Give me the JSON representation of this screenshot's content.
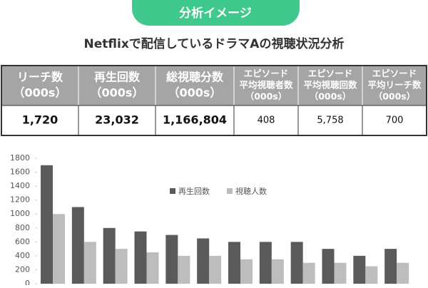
{
  "banner": {
    "text": "分析イメージ"
  },
  "title": "Netflixで配信しているドラマAの視聴状況分析",
  "table": {
    "header": [
      [
        "リーチ数",
        "（000s）"
      ],
      [
        "再生回数",
        "（000s）"
      ],
      [
        "総視聴分数",
        "（000s）"
      ],
      [
        "エピソード",
        "平均視聴者数",
        "（000s）"
      ],
      [
        "エピソード",
        "平均視聴回数",
        "（000s）"
      ],
      [
        "エピソード",
        "平均リーチ数",
        "（000s）"
      ]
    ],
    "rows": [
      [
        "1,720",
        "23,032",
        "1,166,804",
        "408",
        "5,758",
        "700"
      ]
    ]
  },
  "chart_data": {
    "type": "bar",
    "categories": [
      null,
      null,
      null,
      null,
      null,
      null,
      null,
      null,
      null,
      null,
      null,
      null
    ],
    "series": [
      {
        "name": "再生回数",
        "color": "#5a5a5a",
        "values": [
          1700,
          1100,
          800,
          750,
          700,
          650,
          600,
          600,
          600,
          500,
          400,
          500
        ]
      },
      {
        "name": "視聴人数",
        "color": "#bdbdbd",
        "values": [
          1000,
          600,
          500,
          450,
          400,
          400,
          350,
          350,
          300,
          300,
          250,
          300
        ]
      }
    ],
    "ylim": [
      0,
      1800
    ],
    "yticks": [
      0,
      200,
      400,
      600,
      800,
      1000,
      1200,
      1400,
      1600,
      1800
    ],
    "legend": "top"
  }
}
